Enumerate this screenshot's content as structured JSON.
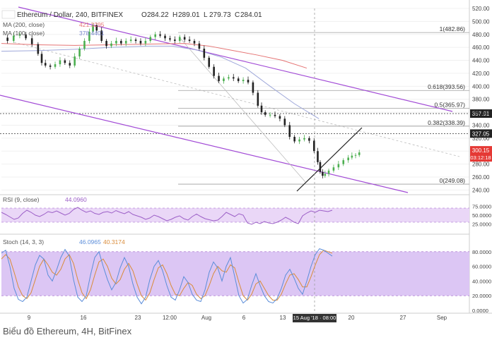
{
  "header": {
    "symbol_title": "Ethereum / Dollar, 240, BITFINEX",
    "ohlc": [
      {
        "key": "O",
        "value": "284.22"
      },
      {
        "key": "H",
        "value": "289.01"
      },
      {
        "key": "L",
        "value": "279.73"
      },
      {
        "key": "C",
        "value": "284.01"
      }
    ],
    "ma200": {
      "label": "MA (200, close)",
      "value": "421.3295"
    },
    "ma100": {
      "label": "MA (100, close)",
      "value": "378.4401"
    }
  },
  "caption": "Biểu đồ Ethereum, 4H, BitFinex",
  "colors": {
    "up": "#4caf50",
    "down": "#222222",
    "channel": "#a24bd6",
    "ma200": "#e57373",
    "ma100": "#9fa8da",
    "rsi_line": "#9c5fc7",
    "rsi_band": "#ead7f7",
    "stoch_k": "#5b8dd9",
    "stoch_d": "#d98c3a",
    "stoch_band": "#dcc6f4",
    "price_tag": "#e53935"
  },
  "chart_data": [
    {
      "type": "candlestick",
      "name": "price",
      "ylim": [
        235,
        520
      ],
      "y_ticks": [
        240,
        260,
        280,
        300,
        320,
        340,
        360,
        380,
        400,
        420,
        440,
        460,
        480,
        500,
        520
      ],
      "x_labels": [
        "9",
        "16",
        "23",
        "12:00",
        "Aug",
        "6",
        "13",
        "20",
        "27",
        "Sep"
      ],
      "crosshair_label": "15 Aug '18 · 08:00",
      "fib_levels": [
        {
          "label": "1(482.86)",
          "value": 482.86
        },
        {
          "label": "0.618(393.56)",
          "value": 393.56
        },
        {
          "label": "0.5(365.97)",
          "value": 365.97
        },
        {
          "label": "0.382(338.39)",
          "value": 338.39
        },
        {
          "label": "0(249.08)",
          "value": 249.08
        }
      ],
      "horizontal_lines": [
        {
          "label": "357.91",
          "value": 357.91
        },
        {
          "label": "327.05",
          "value": 327.05
        }
      ],
      "last_price": {
        "value": "300.15",
        "countdown": "03:12:18"
      },
      "path_points": [
        [
          0,
          475
        ],
        [
          5,
          470
        ],
        [
          10,
          478
        ],
        [
          15,
          480
        ],
        [
          20,
          474
        ],
        [
          25,
          465
        ],
        [
          30,
          450
        ],
        [
          33,
          436
        ],
        [
          36,
          432
        ],
        [
          40,
          430
        ],
        [
          44,
          434
        ],
        [
          48,
          440
        ],
        [
          52,
          436
        ],
        [
          56,
          432
        ],
        [
          60,
          446
        ],
        [
          64,
          458
        ],
        [
          68,
          470
        ],
        [
          72,
          484
        ],
        [
          75,
          494
        ],
        [
          78,
          486
        ],
        [
          82,
          470
        ],
        [
          86,
          462
        ],
        [
          90,
          466
        ],
        [
          94,
          470
        ],
        [
          98,
          466
        ],
        [
          102,
          470
        ],
        [
          106,
          472
        ],
        [
          110,
          470
        ],
        [
          114,
          466
        ],
        [
          118,
          470
        ],
        [
          122,
          476
        ],
        [
          126,
          480
        ],
        [
          130,
          478
        ],
        [
          134,
          474
        ],
        [
          138,
          472
        ],
        [
          142,
          470
        ],
        [
          146,
          476
        ],
        [
          150,
          472
        ],
        [
          154,
          470
        ],
        [
          158,
          466
        ],
        [
          162,
          458
        ],
        [
          166,
          444
        ],
        [
          170,
          430
        ],
        [
          174,
          416
        ],
        [
          178,
          408
        ],
        [
          182,
          412
        ],
        [
          186,
          414
        ],
        [
          190,
          412
        ],
        [
          194,
          408
        ],
        [
          198,
          410
        ],
        [
          202,
          406
        ],
        [
          206,
          390
        ],
        [
          210,
          370
        ],
        [
          213,
          360
        ],
        [
          216,
          356
        ],
        [
          220,
          356
        ],
        [
          224,
          354
        ],
        [
          228,
          350
        ],
        [
          232,
          340
        ],
        [
          236,
          322
        ],
        [
          240,
          315
        ],
        [
          244,
          318
        ],
        [
          248,
          320
        ],
        [
          252,
          316
        ],
        [
          256,
          300
        ],
        [
          259,
          283
        ],
        [
          261,
          268
        ],
        [
          263,
          262
        ],
        [
          265,
          265
        ],
        [
          268,
          270
        ],
        [
          272,
          275
        ],
        [
          276,
          280
        ],
        [
          280,
          286
        ],
        [
          284,
          290
        ],
        [
          287,
          293
        ],
        [
          290,
          294
        ],
        [
          293,
          298
        ]
      ],
      "ma200_points": [
        [
          0,
          466
        ],
        [
          30,
          464
        ],
        [
          60,
          463
        ],
        [
          90,
          464
        ],
        [
          120,
          465
        ],
        [
          150,
          466
        ],
        [
          170,
          462
        ],
        [
          190,
          455
        ],
        [
          210,
          448
        ],
        [
          230,
          440
        ],
        [
          250,
          428
        ]
      ],
      "ma100_points": [
        [
          0,
          454
        ],
        [
          30,
          455
        ],
        [
          60,
          457
        ],
        [
          90,
          460
        ],
        [
          120,
          462
        ],
        [
          140,
          462
        ],
        [
          160,
          456
        ],
        [
          180,
          445
        ],
        [
          200,
          428
        ],
        [
          220,
          400
        ],
        [
          240,
          373
        ],
        [
          260,
          350
        ]
      ]
    },
    {
      "type": "line",
      "name": "RSI (9, close)",
      "series_value": "44.0960",
      "ylim": [
        0,
        100
      ],
      "band": [
        30,
        70
      ],
      "y_ticks": [
        "75.0000",
        "50.0000",
        "25.0000"
      ],
      "y_tick_values": [
        75,
        50,
        25
      ],
      "values": [
        58,
        52,
        45,
        38,
        42,
        55,
        64,
        58,
        50,
        46,
        52,
        60,
        57,
        62,
        56,
        50,
        55,
        66,
        72,
        64,
        58,
        62,
        55,
        52,
        58,
        60,
        56,
        63,
        58,
        54,
        60,
        52,
        48,
        44,
        38,
        42,
        50,
        46,
        40,
        34,
        38,
        44,
        48,
        40,
        36,
        46,
        53,
        46,
        40,
        37,
        34,
        36,
        46,
        58,
        52,
        46,
        54,
        50,
        28,
        24,
        30,
        26,
        32,
        28,
        26,
        30,
        36,
        44,
        38,
        30,
        26,
        48,
        56,
        62,
        58,
        64,
        62,
        60,
        64
      ]
    },
    {
      "type": "line",
      "name": "Stoch (14, 3, 3)",
      "series_values": [
        "46.0965",
        "40.3174"
      ],
      "ylim": [
        0,
        100
      ],
      "band": [
        20,
        80
      ],
      "y_ticks": [
        "80.0000",
        "60.0000",
        "40.0000",
        "20.0000",
        "0.0000"
      ],
      "y_tick_values": [
        80,
        60,
        40,
        20,
        0
      ],
      "k_values": [
        78,
        82,
        60,
        30,
        15,
        12,
        18,
        40,
        62,
        75,
        70,
        48,
        40,
        55,
        72,
        83,
        74,
        42,
        18,
        12,
        20,
        48,
        72,
        80,
        60,
        42,
        28,
        38,
        58,
        72,
        60,
        36,
        18,
        9,
        18,
        42,
        60,
        68,
        54,
        34,
        18,
        14,
        28,
        46,
        38,
        22,
        14,
        12,
        28,
        52,
        66,
        58,
        40,
        60,
        72,
        46,
        20,
        10,
        15,
        34,
        50,
        34,
        20,
        12,
        10,
        16,
        30,
        48,
        56,
        44,
        30,
        22,
        40,
        60,
        76,
        84,
        82,
        78,
        74
      ],
      "d_values": [
        70,
        76,
        70,
        52,
        32,
        20,
        16,
        24,
        42,
        60,
        70,
        62,
        52,
        48,
        56,
        70,
        76,
        64,
        42,
        24,
        16,
        28,
        48,
        66,
        70,
        60,
        44,
        36,
        42,
        56,
        64,
        54,
        36,
        20,
        14,
        24,
        42,
        58,
        62,
        50,
        34,
        22,
        20,
        30,
        38,
        34,
        22,
        16,
        20,
        34,
        50,
        60,
        54,
        52,
        62,
        58,
        38,
        20,
        14,
        22,
        36,
        40,
        30,
        20,
        14,
        14,
        22,
        36,
        48,
        50,
        42,
        32,
        32,
        46,
        62,
        76,
        82,
        80,
        78
      ]
    }
  ]
}
